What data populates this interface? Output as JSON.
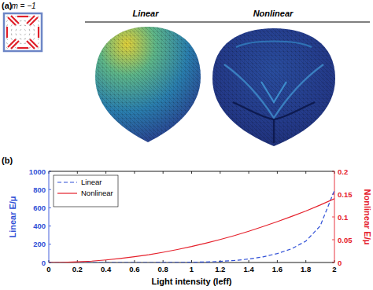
{
  "panel_a": {
    "label": "(a)",
    "pattern_label": "m = −1",
    "headers": [
      "Linear",
      "Nonlinear"
    ]
  },
  "panel_b": {
    "label": "(b)"
  },
  "chart_data": {
    "type": "line",
    "xlabel": "Light intensity (Ieff)",
    "ylabel": "Linear E/μ",
    "y2label": "Nonlinear E/μ",
    "x": [
      0,
      0.1,
      0.2,
      0.3,
      0.4,
      0.5,
      0.6,
      0.7,
      0.8,
      0.9,
      1.0,
      1.1,
      1.2,
      1.3,
      1.4,
      1.5,
      1.6,
      1.7,
      1.8,
      1.9,
      2.0
    ],
    "series": [
      {
        "name": "Linear",
        "color": "#2f4fd6",
        "line_style": "dashed",
        "values": [
          0,
          0,
          0,
          0,
          0,
          0,
          0,
          0,
          0.5,
          1,
          3,
          6,
          12,
          22,
          38,
          62,
          98,
          150,
          235,
          400,
          790
        ]
      },
      {
        "name": "Nonlinear",
        "color": "#e5202b",
        "line_style": "solid",
        "axis": "y2",
        "values": [
          0,
          0.0004,
          0.0014,
          0.003,
          0.0056,
          0.0088,
          0.0126,
          0.017,
          0.0224,
          0.0284,
          0.035,
          0.0424,
          0.0505,
          0.059,
          0.0686,
          0.0788,
          0.0896,
          0.101,
          0.113,
          0.126,
          0.14
        ]
      }
    ],
    "xlim": [
      0,
      2
    ],
    "xticks": [
      0,
      0.2,
      0.4,
      0.6,
      0.8,
      1,
      1.2,
      1.4,
      1.6,
      1.8,
      2
    ],
    "ylim": [
      0,
      1000
    ],
    "yticks": [
      0,
      200,
      400,
      600,
      800,
      1000
    ],
    "y2lim": [
      0,
      0.2
    ],
    "y2ticks": [
      0,
      0.05,
      0.1,
      0.15,
      0.2
    ],
    "grid": false,
    "legend": "upper left"
  }
}
